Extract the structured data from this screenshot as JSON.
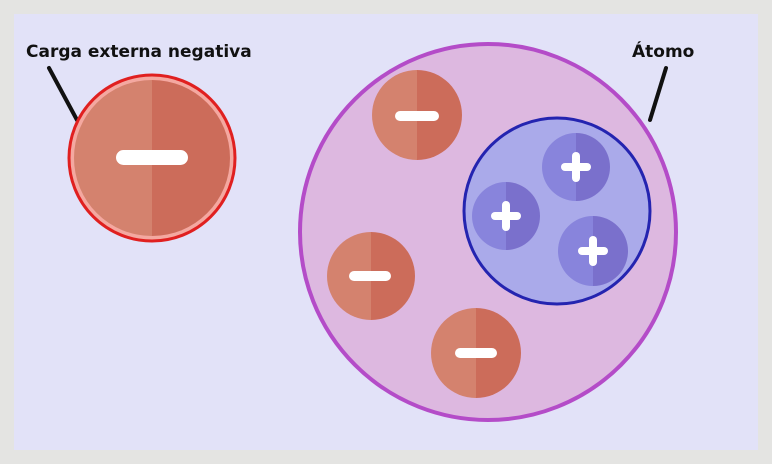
{
  "labels": {
    "external_charge": "Carga externa negativa",
    "atom": "Átomo"
  },
  "colors": {
    "frame": "#e4e4e2",
    "panel_background": "#e2e2f8",
    "atom_fill": "#ddb8e0",
    "atom_border": "#b44cc8",
    "nucleus_fill": "#aaaaea",
    "nucleus_border": "#2424b0",
    "electron_light": "#d4826e",
    "electron_dark": "#cc6c5a",
    "external_charge_border": "#e02020",
    "external_charge_ring": "#f4a8a0",
    "proton_light": "#8884dc",
    "proton_dark": "#7a70cc",
    "sign": "#ffffff",
    "pointer": "#111111"
  },
  "elements": {
    "external_charge_sign": "negative",
    "electron_count": 3,
    "electron_sign": "negative",
    "proton_count": 3,
    "proton_sign": "positive"
  }
}
